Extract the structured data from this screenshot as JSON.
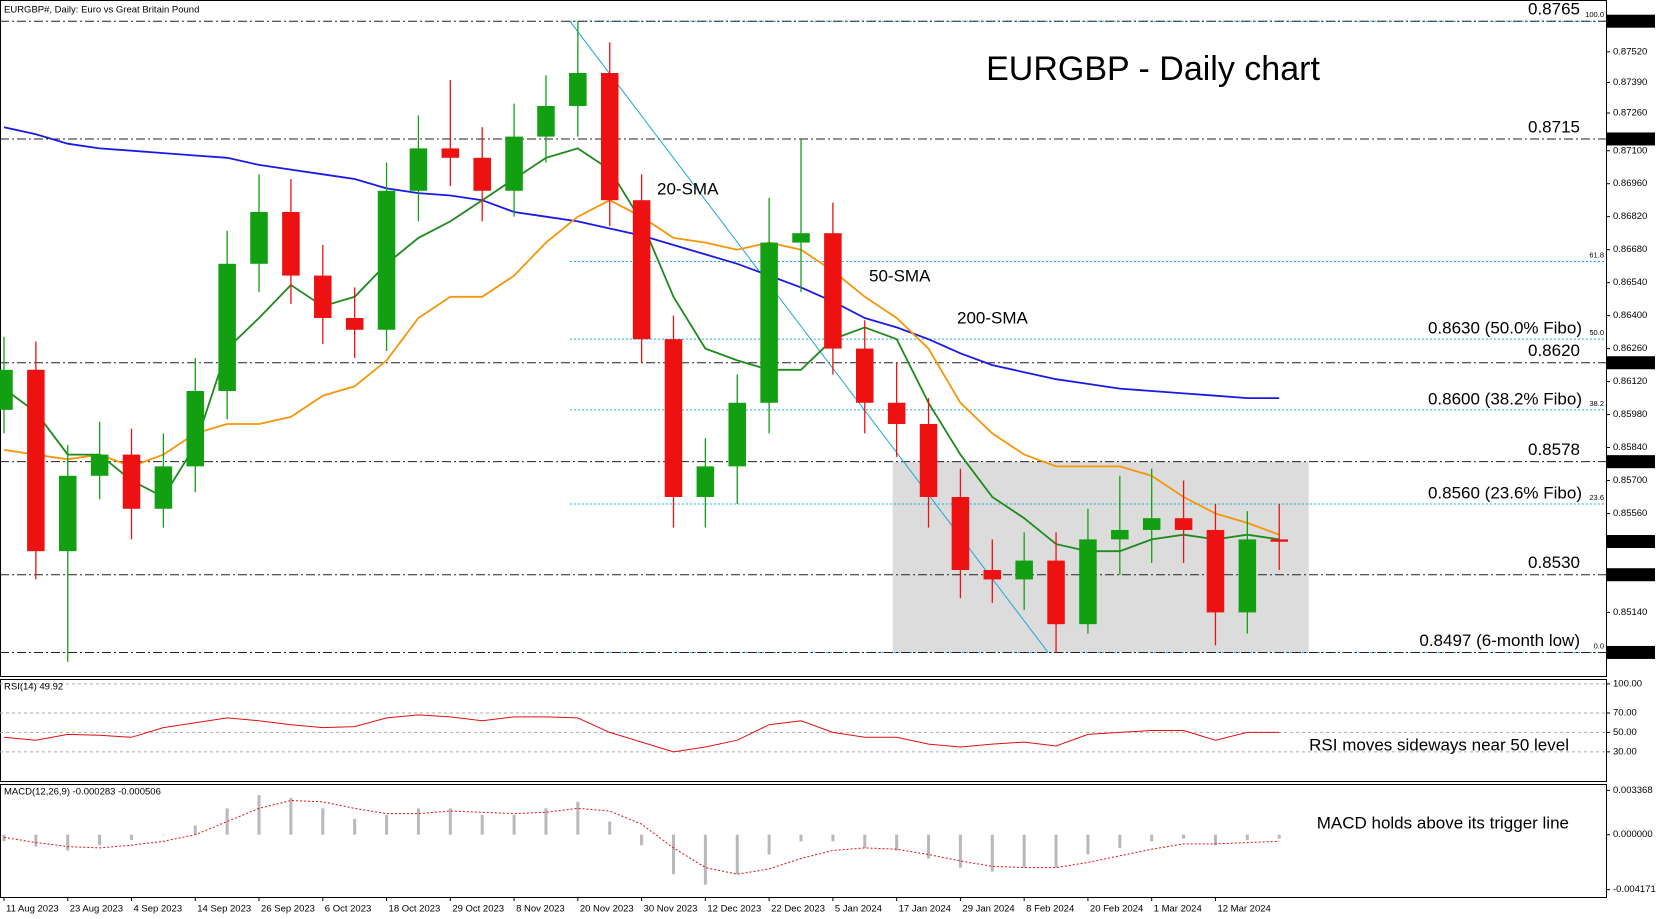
{
  "chart_data": [
    {
      "type": "candlestick",
      "title": "EURGBP - Daily chart",
      "subtitle": "EURGBP#, Daily:  Euro vs Great Britain Pound",
      "xlim": [
        -0.5,
        201
      ],
      "ylim": [
        0.8487,
        0.8774
      ],
      "x": [
        0,
        4,
        8,
        12,
        16,
        20,
        24,
        28,
        32,
        36,
        40,
        44,
        48,
        52,
        56,
        60,
        64,
        68,
        72,
        76,
        80,
        84,
        88,
        92,
        96,
        100,
        104,
        108,
        112,
        116,
        120,
        124,
        128,
        132,
        136,
        140,
        144,
        148,
        152,
        156,
        160
      ],
      "open": [
        0.86,
        0.8617,
        0.854,
        0.8572,
        0.8581,
        0.8558,
        0.8576,
        0.8608,
        0.8662,
        0.8684,
        0.8657,
        0.8639,
        0.8634,
        0.8693,
        0.8711,
        0.8707,
        0.8693,
        0.8716,
        0.8729,
        0.8743,
        0.8689,
        0.863,
        0.8563,
        0.8576,
        0.8603,
        0.8671,
        0.8675,
        0.8626,
        0.8603,
        0.8594,
        0.8563,
        0.8532,
        0.8528,
        0.8536,
        0.8509,
        0.8545,
        0.8549,
        0.8554,
        0.8549,
        0.8514,
        0.8545
      ],
      "high": [
        0.8631,
        0.8629,
        0.8585,
        0.8595,
        0.8592,
        0.859,
        0.8622,
        0.8676,
        0.87,
        0.8698,
        0.867,
        0.8652,
        0.8705,
        0.8725,
        0.874,
        0.872,
        0.873,
        0.8742,
        0.8765,
        0.8756,
        0.87,
        0.864,
        0.8588,
        0.8615,
        0.869,
        0.8715,
        0.8688,
        0.8638,
        0.862,
        0.8605,
        0.8575,
        0.8545,
        0.8548,
        0.8548,
        0.8558,
        0.8572,
        0.8575,
        0.857,
        0.856,
        0.8557,
        0.856
      ],
      "low": [
        0.859,
        0.8528,
        0.8493,
        0.8562,
        0.8545,
        0.855,
        0.8565,
        0.8596,
        0.865,
        0.8645,
        0.8628,
        0.8622,
        0.8625,
        0.868,
        0.8695,
        0.868,
        0.8682,
        0.8705,
        0.8716,
        0.8678,
        0.862,
        0.855,
        0.855,
        0.856,
        0.859,
        0.865,
        0.8615,
        0.859,
        0.858,
        0.855,
        0.852,
        0.8518,
        0.8515,
        0.8497,
        0.8505,
        0.853,
        0.8535,
        0.8535,
        0.85,
        0.8505,
        0.8532
      ],
      "close": [
        0.8617,
        0.854,
        0.8572,
        0.8581,
        0.8558,
        0.8576,
        0.8608,
        0.8662,
        0.8684,
        0.8657,
        0.8639,
        0.8634,
        0.8693,
        0.8711,
        0.8707,
        0.8693,
        0.8716,
        0.8729,
        0.8743,
        0.8689,
        0.863,
        0.8563,
        0.8576,
        0.8603,
        0.8671,
        0.8675,
        0.8626,
        0.8603,
        0.8594,
        0.8563,
        0.8532,
        0.8528,
        0.8536,
        0.8509,
        0.8545,
        0.8549,
        0.8554,
        0.8549,
        0.8514,
        0.8545,
        0.8544
      ],
      "up_color": "#12a012",
      "down_color": "#ee1111",
      "series": [
        {
          "name": "20-SMA",
          "color": "#1e8a1e",
          "values": [
            0.8609,
            0.8599,
            0.8581,
            0.8581,
            0.857,
            0.8563,
            0.8585,
            0.8626,
            0.8639,
            0.8653,
            0.8644,
            0.8648,
            0.8662,
            0.8673,
            0.868,
            0.8689,
            0.8698,
            0.8707,
            0.8711,
            0.8702,
            0.868,
            0.8648,
            0.8626,
            0.8621,
            0.8617,
            0.8617,
            0.863,
            0.8635,
            0.863,
            0.8603,
            0.8581,
            0.8563,
            0.8554,
            0.8543,
            0.854,
            0.854,
            0.8545,
            0.8547,
            0.8545,
            0.8547,
            0.8545
          ]
        },
        {
          "name": "50-SMA",
          "color": "#f5960a",
          "values": [
            0.8583,
            0.8581,
            0.8579,
            0.8581,
            0.8576,
            0.8581,
            0.859,
            0.8594,
            0.8594,
            0.8597,
            0.8606,
            0.861,
            0.8621,
            0.8639,
            0.8648,
            0.8648,
            0.8657,
            0.8671,
            0.8682,
            0.8689,
            0.8682,
            0.8673,
            0.8671,
            0.8668,
            0.8671,
            0.8668,
            0.8659,
            0.8648,
            0.8639,
            0.8626,
            0.8603,
            0.859,
            0.8581,
            0.8576,
            0.8576,
            0.8576,
            0.8572,
            0.8563,
            0.8556,
            0.8552,
            0.8547
          ]
        },
        {
          "name": "200-SMA",
          "color": "#1a1ae6",
          "values": [
            0.872,
            0.8717,
            0.8713,
            0.8711,
            0.871,
            0.8709,
            0.8708,
            0.8707,
            0.8704,
            0.8702,
            0.87,
            0.8698,
            0.8694,
            0.8692,
            0.8691,
            0.8689,
            0.8684,
            0.8682,
            0.868,
            0.8677,
            0.8674,
            0.867,
            0.8666,
            0.8662,
            0.8657,
            0.8652,
            0.8646,
            0.8639,
            0.8635,
            0.863,
            0.8624,
            0.8619,
            0.8616,
            0.8613,
            0.8611,
            0.8609,
            0.8608,
            0.8607,
            0.8606,
            0.8605,
            0.8605
          ]
        }
      ],
      "levels": [
        {
          "label": "0.8765",
          "value": 0.8765,
          "color": "#ff1a1a"
        },
        {
          "label": "0.8715",
          "value": 0.8715,
          "color": "#ff1a1a"
        },
        {
          "label": "0.8620",
          "value": 0.862,
          "color": "#ff1a1a"
        },
        {
          "label": "0.8578",
          "value": 0.8578,
          "color": "#ff1a1a"
        },
        {
          "label": "0.8530",
          "value": 0.853,
          "color": "#1d7a1d"
        },
        {
          "label": "0.8497 (6-month low)",
          "value": 0.8497,
          "color": "#2e9e2e"
        }
      ],
      "fibo_color": "#1ea7d6",
      "fibo_line": {
        "x": [
          71,
          131
        ],
        "y": [
          0.8765,
          0.8497
        ]
      },
      "fibo": [
        {
          "ratio": "100.0",
          "price": 0.8765
        },
        {
          "ratio": "61.8",
          "price": 0.8663
        },
        {
          "ratio": "50.0",
          "price": 0.863,
          "label": "0.8630 (50.0% Fibo)"
        },
        {
          "ratio": "38.2",
          "price": 0.86,
          "label": "0.8600 (38.2% Fibo)"
        },
        {
          "ratio": "23.6",
          "price": 0.856,
          "label": "0.8560 (23.6% Fibo)"
        },
        {
          "ratio": "0.0",
          "price": 0.8497
        }
      ],
      "range_box": {
        "x": [
          111.5,
          163.7
        ],
        "y": [
          0.8497,
          0.8578
        ]
      },
      "yticks": [
        {
          "value": 0.8752,
          "label": "0.87520"
        },
        {
          "value": 0.8739,
          "label": "0.87390"
        },
        {
          "value": 0.8726,
          "label": "0.87260"
        },
        {
          "value": 0.871,
          "label": "0.87100"
        },
        {
          "value": 0.8696,
          "label": "0.86960"
        },
        {
          "value": 0.8682,
          "label": "0.86820"
        },
        {
          "value": 0.8668,
          "label": "0.86680"
        },
        {
          "value": 0.8654,
          "label": "0.86540"
        },
        {
          "value": 0.864,
          "label": "0.86400"
        },
        {
          "value": 0.8626,
          "label": "0.86260"
        },
        {
          "value": 0.8612,
          "label": "0.86120"
        },
        {
          "value": 0.8598,
          "label": "0.85980"
        },
        {
          "value": 0.8584,
          "label": "0.85840"
        },
        {
          "value": 0.857,
          "label": "0.85700"
        },
        {
          "value": 0.8556,
          "label": "0.85560"
        },
        {
          "value": 0.8514,
          "label": "0.85140"
        }
      ],
      "axis_marks": [
        {
          "value": 0.8765,
          "label": "0.87650"
        },
        {
          "value": 0.8715,
          "label": "0.87150"
        },
        {
          "value": 0.862,
          "label": "0.86200"
        },
        {
          "value": 0.8578,
          "label": "0.85780"
        },
        {
          "value": 0.853,
          "label": "0.85300"
        },
        {
          "value": 0.8497,
          "label": "0.84970"
        }
      ],
      "current": {
        "value": 0.85441,
        "label": "0.85441"
      }
    },
    {
      "type": "line",
      "title": "RSI(14) 49.92",
      "annotation": "RSI moves sideways near 50 level",
      "xlim": [
        -0.5,
        201
      ],
      "ylim": [
        0,
        105
      ],
      "grid": true,
      "color": "#e01010",
      "x": [
        0,
        4,
        8,
        12,
        16,
        20,
        24,
        28,
        32,
        36,
        40,
        44,
        48,
        52,
        56,
        60,
        64,
        68,
        72,
        76,
        80,
        84,
        88,
        92,
        96,
        100,
        104,
        108,
        112,
        116,
        120,
        124,
        128,
        132,
        136,
        140,
        144,
        148,
        152,
        156,
        160
      ],
      "values": [
        45,
        42,
        48,
        47,
        45,
        55,
        60,
        65,
        62,
        58,
        55,
        56,
        65,
        68,
        66,
        62,
        66,
        66,
        65,
        50,
        40,
        30,
        35,
        42,
        58,
        62,
        50,
        45,
        45,
        38,
        35,
        38,
        40,
        36,
        48,
        50,
        52,
        52,
        42,
        50,
        50
      ],
      "yticks": [
        {
          "value": 100,
          "label": "100.00"
        },
        {
          "value": 70,
          "label": "70.00"
        },
        {
          "value": 50,
          "label": "50.00"
        },
        {
          "value": 30,
          "label": "30.00"
        }
      ]
    },
    {
      "type": "macd",
      "title": "MACD(12,26,9) -0.000283 -0.000506",
      "annotation": "MACD holds above its trigger line",
      "xlim": [
        -0.5,
        201
      ],
      "ylim": [
        -0.00473,
        0.00385
      ],
      "x": [
        0,
        4,
        8,
        12,
        16,
        20,
        24,
        28,
        32,
        36,
        40,
        44,
        48,
        52,
        56,
        60,
        64,
        68,
        72,
        76,
        80,
        84,
        88,
        92,
        96,
        100,
        104,
        108,
        112,
        116,
        120,
        124,
        128,
        132,
        136,
        140,
        144,
        148,
        152,
        156,
        160
      ],
      "histogram": [
        -0.0005,
        -0.0009,
        -0.0012,
        -0.0008,
        -0.0004,
        0.0,
        0.0007,
        0.002,
        0.003,
        0.0028,
        0.002,
        0.0012,
        0.0015,
        0.002,
        0.002,
        0.0015,
        0.0015,
        0.002,
        0.0025,
        0.001,
        -0.0008,
        -0.003,
        -0.0038,
        -0.003,
        -0.0015,
        -0.0005,
        -0.0005,
        -0.001,
        -0.0012,
        -0.0018,
        -0.0025,
        -0.0028,
        -0.0025,
        -0.0025,
        -0.0015,
        -0.001,
        -0.0005,
        -0.0003,
        -0.0008,
        -0.0004,
        -0.0003
      ],
      "signal": [
        -0.0002,
        -0.0006,
        -0.0009,
        -0.001,
        -0.0008,
        -0.0005,
        0.0,
        0.001,
        0.002,
        0.0026,
        0.0025,
        0.002,
        0.0016,
        0.0016,
        0.0018,
        0.0017,
        0.0016,
        0.0017,
        0.002,
        0.0018,
        0.0008,
        -0.001,
        -0.0025,
        -0.003,
        -0.0026,
        -0.0018,
        -0.0012,
        -0.001,
        -0.0011,
        -0.0015,
        -0.002,
        -0.0024,
        -0.0025,
        -0.0025,
        -0.0021,
        -0.0016,
        -0.0011,
        -0.0007,
        -0.0007,
        -0.0006,
        -0.0005
      ],
      "histogram_color": "#b8b8b8",
      "signal_color": "#e01010",
      "yticks": [
        {
          "value": 0.003368,
          "label": "0.003368"
        },
        {
          "value": 0,
          "label": "0.000000"
        },
        {
          "value": -0.004171,
          "label": "-0.004171"
        }
      ],
      "xticks": [
        {
          "value": 0,
          "label": "11 Aug 2023"
        },
        {
          "value": 8,
          "label": "23 Aug 2023"
        },
        {
          "value": 16,
          "label": "4 Sep 2023"
        },
        {
          "value": 24,
          "label": "14 Sep 2023"
        },
        {
          "value": 32,
          "label": "26 Sep 2023"
        },
        {
          "value": 40,
          "label": "6 Oct 2023"
        },
        {
          "value": 48,
          "label": "18 Oct 2023"
        },
        {
          "value": 56,
          "label": "29 Oct 2023"
        },
        {
          "value": 64,
          "label": "8 Nov 2023"
        },
        {
          "value": 72,
          "label": "20 Nov 2023"
        },
        {
          "value": 80,
          "label": "30 Nov 2023"
        },
        {
          "value": 88,
          "label": "12 Dec 2023"
        },
        {
          "value": 96,
          "label": "22 Dec 2023"
        },
        {
          "value": 104,
          "label": "5 Jan 2024"
        },
        {
          "value": 112,
          "label": "17 Jan 2024"
        },
        {
          "value": 120,
          "label": "29 Jan 2024"
        },
        {
          "value": 128,
          "label": "8 Feb 2024"
        },
        {
          "value": 136,
          "label": "20 Feb 2024"
        },
        {
          "value": 144,
          "label": "1 Mar 2024"
        },
        {
          "value": 152,
          "label": "12 Mar 2024"
        }
      ]
    }
  ]
}
